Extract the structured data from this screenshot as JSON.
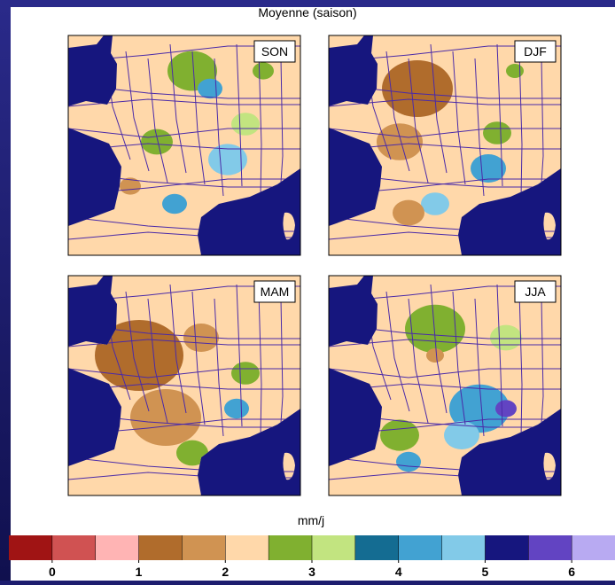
{
  "title": "Moyenne (saison)",
  "panels": [
    {
      "label": "SON"
    },
    {
      "label": "DJF"
    },
    {
      "label": "MAM"
    },
    {
      "label": "JJA"
    }
  ],
  "colorbar": {
    "label": "mm/j",
    "colors": [
      "#a01414",
      "#d05252",
      "#ffb4b4",
      "#b06c2c",
      "#d09352",
      "#ffd8aa",
      "#80b030",
      "#c2e480",
      "#146c92",
      "#42a2d2",
      "#82cae8",
      "#16167e",
      "#6244c2",
      "#b8aaf2"
    ],
    "lim": [
      -0.5,
      6.5
    ],
    "ticks": [
      0,
      1,
      2,
      3,
      4,
      5,
      6
    ]
  }
}
